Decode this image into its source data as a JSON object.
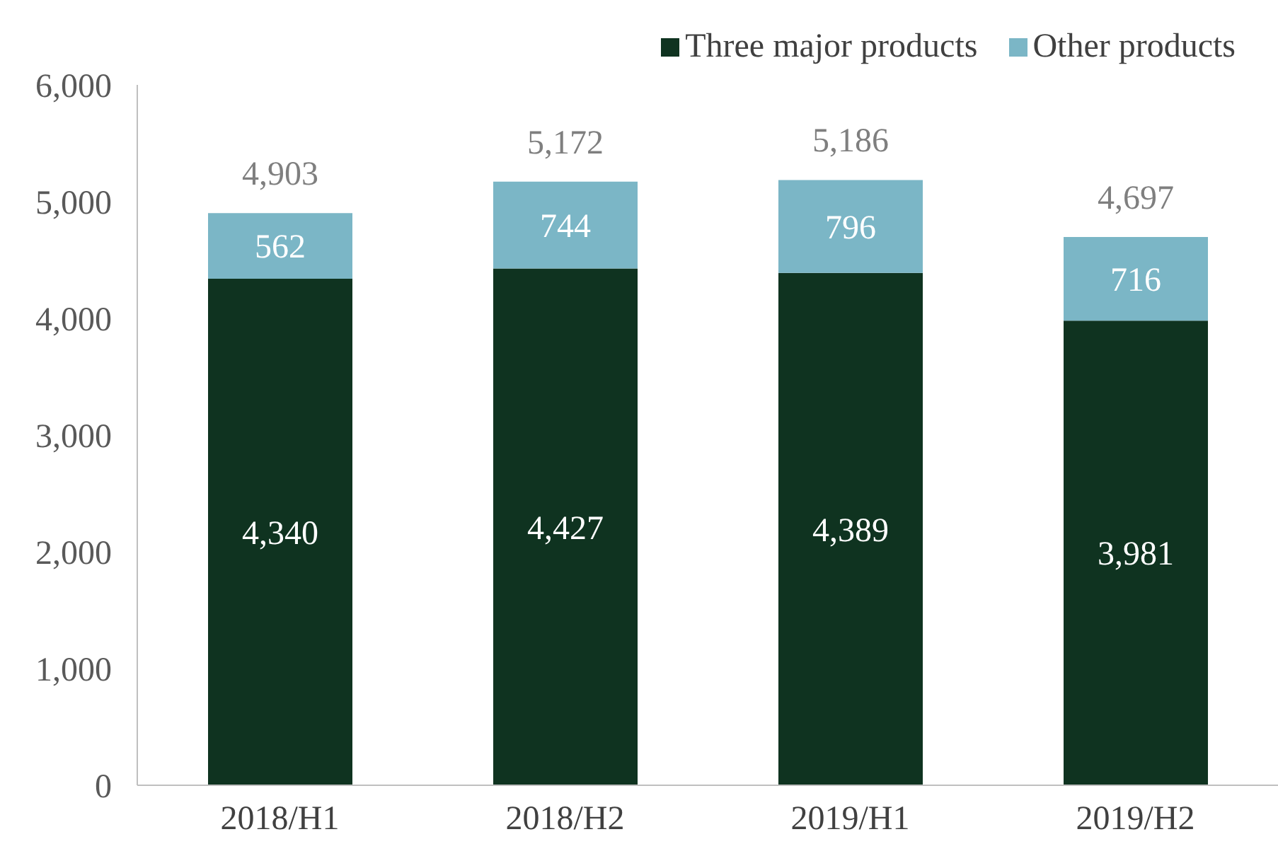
{
  "chart_data": {
    "type": "bar",
    "stacked": true,
    "categories": [
      "2018/H1",
      "2018/H2",
      "2019/H1",
      "2019/H2"
    ],
    "series": [
      {
        "name": "Three major products",
        "color": "#0f3320",
        "values": [
          4340,
          4427,
          4389,
          3981
        ],
        "value_labels": [
          "4,340",
          "4,427",
          "4,389",
          "3,981"
        ]
      },
      {
        "name": "Other products",
        "color": "#7bb6c6",
        "values": [
          562,
          744,
          796,
          716
        ],
        "value_labels": [
          "562",
          "744",
          "796",
          "716"
        ]
      }
    ],
    "totals": [
      "4,903",
      "5,172",
      "5,186",
      "4,697"
    ],
    "ylim": [
      0,
      6000
    ],
    "yticks": [
      0,
      {
        "value": 1000,
        "label": "1,000"
      },
      {
        "value": 2000,
        "label": "2,000"
      },
      {
        "value": 3000,
        "label": "3,000"
      },
      {
        "value": 4000,
        "label": "4,000"
      },
      {
        "value": 5000,
        "label": "5,000"
      },
      {
        "value": 6000,
        "label": "6,000"
      }
    ],
    "grid": false,
    "legend": "top right"
  }
}
